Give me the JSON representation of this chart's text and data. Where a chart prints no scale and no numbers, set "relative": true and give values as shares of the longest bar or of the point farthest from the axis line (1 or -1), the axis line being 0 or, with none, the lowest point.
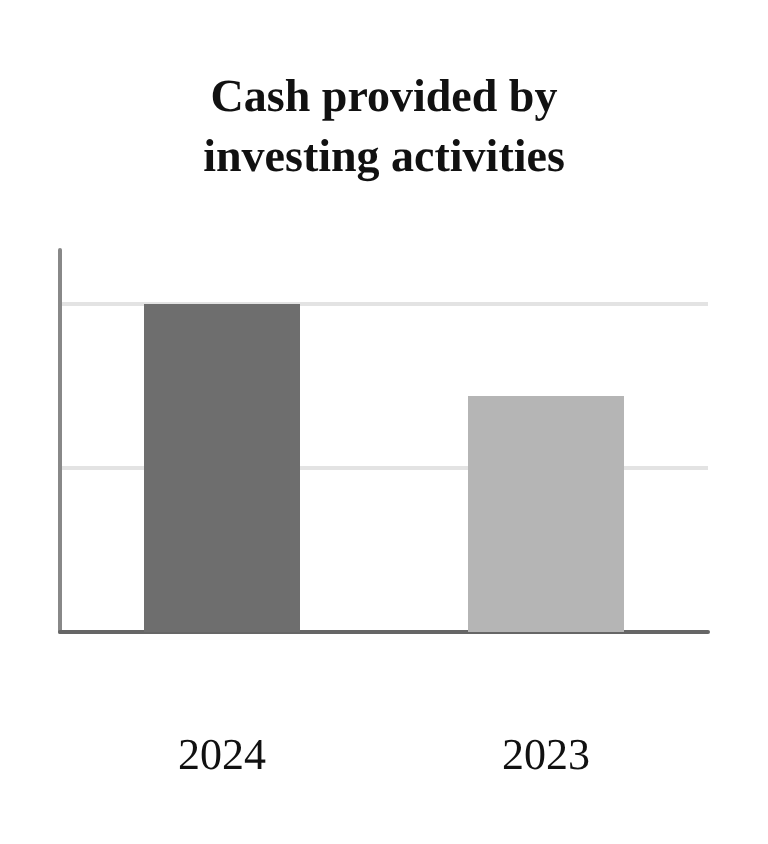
{
  "chart_data": {
    "type": "bar",
    "title": "Cash provided by\ninvesting activities",
    "categories": [
      "2024",
      "2023"
    ],
    "values": [
      1,
      0.72
    ],
    "colors": [
      "#6e6e6e",
      "#b5b5b5"
    ],
    "relative": true,
    "ref_lines": [
      {
        "axis": "y",
        "value": 0.5,
        "color": "#e3e3e3"
      },
      {
        "axis": "y",
        "value": 1,
        "color": "#e3e3e3"
      }
    ]
  }
}
